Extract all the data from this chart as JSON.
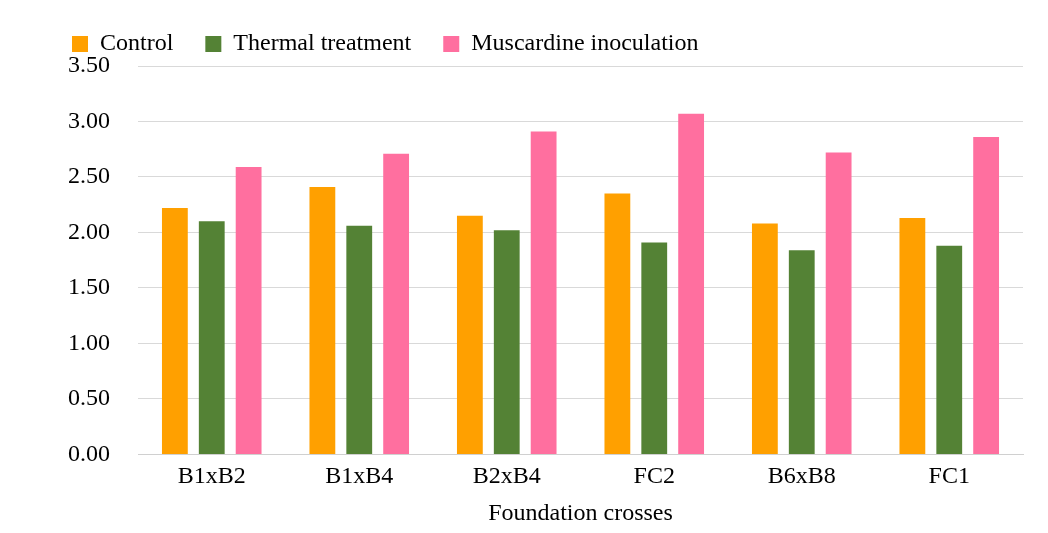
{
  "chart_data": {
    "type": "bar",
    "xlabel": "Foundation crosses",
    "categories": [
      "B1xB2",
      "B1xB4",
      "B2xB4",
      "FC2",
      "B6xB8",
      "FC1"
    ],
    "series": [
      {
        "name": "Control",
        "color": "#ffa000",
        "values": [
          2.22,
          2.41,
          2.15,
          2.35,
          2.08,
          2.13
        ]
      },
      {
        "name": "Thermal treatment",
        "color": "#548235",
        "values": [
          2.1,
          2.06,
          2.02,
          1.91,
          1.84,
          1.88
        ]
      },
      {
        "name": "Muscardine inoculation",
        "color": "#ff6f9f",
        "values": [
          2.59,
          2.71,
          2.91,
          3.07,
          2.72,
          2.86
        ]
      }
    ],
    "ylim": [
      0,
      3.5
    ],
    "yticks": [
      {
        "value": 0,
        "label": "0.00"
      },
      {
        "value": 0.5,
        "label": "0.50"
      },
      {
        "value": 1,
        "label": "1.00"
      },
      {
        "value": 1.5,
        "label": "1.50"
      },
      {
        "value": 2,
        "label": "2.00"
      },
      {
        "value": 2.5,
        "label": "2.50"
      },
      {
        "value": 3,
        "label": "3.00"
      },
      {
        "value": 3.5,
        "label": "3.50"
      }
    ],
    "grid": "y",
    "legend": "top"
  }
}
